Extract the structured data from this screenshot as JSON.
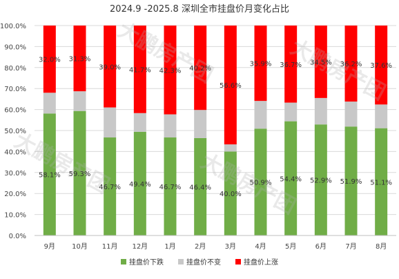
{
  "chart_data": {
    "type": "bar",
    "stacked": true,
    "percent": true,
    "title": "2024.9 -2025.8 深圳全市挂盘价月变化占比",
    "categories": [
      "9月",
      "10月",
      "11月",
      "12月",
      "1月",
      "2月",
      "3月",
      "4月",
      "5月",
      "6月",
      "7月",
      "8月"
    ],
    "series": [
      {
        "name": "挂盘价下跌",
        "color": "#70ad47",
        "values": [
          58.1,
          59.3,
          46.7,
          49.4,
          46.7,
          46.4,
          40.0,
          50.9,
          54.4,
          52.9,
          51.9,
          51.1
        ],
        "labels": [
          "58.1%",
          "59.3%",
          "46.7%",
          "49.4%",
          "46.7%",
          "46.4%",
          "40.0%",
          "50.9%",
          "54.4%",
          "52.9%",
          "51.9%",
          "51.1%"
        ]
      },
      {
        "name": "挂盘价不变",
        "color": "#c8c8c8",
        "values": [
          9.9,
          9.4,
          14.3,
          8.9,
          11.0,
          13.4,
          3.4,
          13.2,
          8.9,
          12.6,
          11.9,
          11.3
        ]
      },
      {
        "name": "挂盘价上涨",
        "color": "#ff0000",
        "values": [
          32.0,
          31.3,
          39.0,
          41.7,
          42.3,
          40.2,
          56.6,
          35.9,
          36.7,
          34.5,
          36.2,
          37.6
        ],
        "labels": [
          "32.0%",
          "31.3%",
          "39.0%",
          "41.7%",
          "42.3%",
          "40.2%",
          "56.6%",
          "35.9%",
          "36.7%",
          "34.5%",
          "36.2%",
          "37.6%"
        ]
      }
    ],
    "ylim": [
      0,
      100
    ],
    "yticks": [
      "0.0%",
      "10.0%",
      "20.0%",
      "30.0%",
      "40.0%",
      "50.0%",
      "60.0%",
      "70.0%",
      "80.0%",
      "90.0%",
      "100.0%"
    ],
    "grid": true,
    "legend_position": "bottom"
  },
  "watermark": "大鹏房产团"
}
